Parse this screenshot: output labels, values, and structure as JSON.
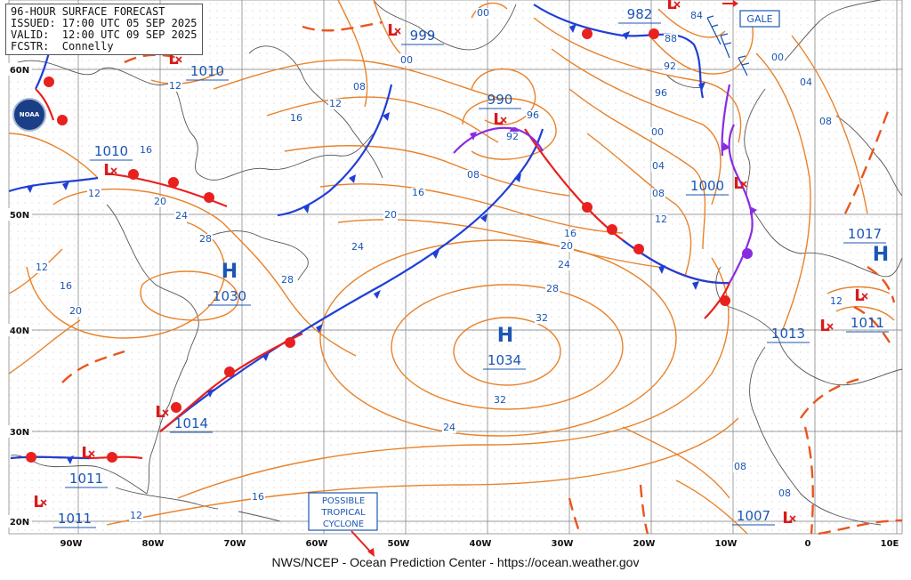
{
  "header": {
    "line1": "96-HOUR SURFACE FORECAST",
    "line2": "ISSUED: 17:00 UTC 05 SEP 2025",
    "line3": "VALID:  12:00 UTC 09 SEP 2025",
    "line4": "FCSTR:  Connelly"
  },
  "logo": "NOAA",
  "credit": "NWS/NCEP - Ocean Prediction Center - https://ocean.weather.gov",
  "lat_labels": [
    "60N",
    "50N",
    "40N",
    "30N",
    "20N"
  ],
  "lon_labels": [
    "90W",
    "80W",
    "70W",
    "60W",
    "50W",
    "40W",
    "30W",
    "20W",
    "10W",
    "0",
    "10E"
  ],
  "pressure_systems": [
    {
      "type": "L",
      "value": "999"
    },
    {
      "type": "L",
      "value": "1010"
    },
    {
      "type": "L",
      "value": "1010"
    },
    {
      "type": "L",
      "value": "990"
    },
    {
      "type": "L",
      "value": "982"
    },
    {
      "type": "L",
      "value": "1000"
    },
    {
      "type": "L",
      "value": "1014"
    },
    {
      "type": "L",
      "value": "1011"
    },
    {
      "type": "L",
      "value": "1011"
    },
    {
      "type": "L",
      "value": "1013"
    },
    {
      "type": "L",
      "value": "1011"
    },
    {
      "type": "L",
      "value": "1007"
    },
    {
      "type": "H",
      "value": "1030"
    },
    {
      "type": "H",
      "value": "1034"
    },
    {
      "type": "H",
      "value": "1017"
    }
  ],
  "isobar_labels": [
    "00",
    "12",
    "08",
    "16",
    "12",
    "20",
    "24",
    "28",
    "16",
    "12",
    "20",
    "00",
    "08",
    "16",
    "24",
    "28",
    "32",
    "28",
    "24",
    "20",
    "16",
    "12",
    "20",
    "24",
    "16",
    "12",
    "08",
    "04",
    "00",
    "96",
    "92",
    "88",
    "84",
    "92",
    "96",
    "00",
    "04",
    "08",
    "16",
    "12",
    "08",
    "12",
    "08",
    "32"
  ],
  "annotations": {
    "gale": "GALE",
    "tropical": [
      "POSSIBLE",
      "TROPICAL",
      "CYCLONE"
    ]
  },
  "colors": {
    "isobar": "#e8822a",
    "cold_front": "#1f3fd6",
    "warm_front": "#e8201e",
    "occluded_front": "#8a2be2",
    "low_marker": "#d91a1a",
    "pressure_text": "#1b56b4",
    "grid": "#7a7a7a",
    "land": "#555555"
  }
}
